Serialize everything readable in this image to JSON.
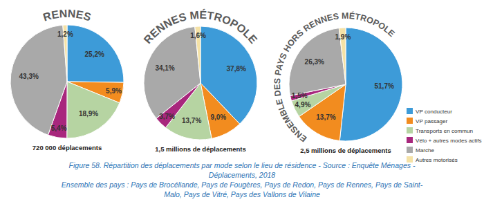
{
  "chart_data": [
    {
      "type": "pie",
      "title": "RENNES",
      "subtitle": "720 000 déplacements",
      "categories": [
        "VP conducteur",
        "VP passager",
        "Transports en commun",
        "Vélo + autres modes actifs",
        "Marche",
        "Autres motorisés"
      ],
      "values": [
        25.2,
        5.9,
        18.9,
        5.4,
        43.3,
        1.2
      ],
      "value_labels": [
        "25,2%",
        "5,9%",
        "18,9%",
        "5,4%",
        "43,3%",
        "1,2%"
      ],
      "colors": [
        "#3d9bd8",
        "#f28c1f",
        "#b6d4a2",
        "#a8277d",
        "#a9a9a9",
        "#f5e2a6"
      ],
      "data_labels": true
    },
    {
      "type": "pie",
      "title": "RENNES MÉTROPOLE",
      "subtitle": "1,5 millions de déplacements",
      "categories": [
        "VP conducteur",
        "VP passager",
        "Transports en commun",
        "Vélo + autres modes actifs",
        "Marche",
        "Autres motorisés"
      ],
      "values": [
        37.8,
        9.0,
        13.7,
        3.7,
        34.1,
        1.6
      ],
      "value_labels": [
        "37,8%",
        "9,0%",
        "13,7%",
        "3,7%",
        "34,1%",
        "1,6%"
      ],
      "colors": [
        "#3d9bd8",
        "#f28c1f",
        "#b6d4a2",
        "#a8277d",
        "#a9a9a9",
        "#f5e2a6"
      ],
      "data_labels": true
    },
    {
      "type": "pie",
      "title": "ENSEMBLE DES PAYS HORS RENNES MÉTROPOLE",
      "subtitle": "2,5 millions de déplacements",
      "categories": [
        "VP conducteur",
        "VP passager",
        "Transports en commun",
        "Vélo + autres modes actifs",
        "Marche",
        "Autres motorisés"
      ],
      "values": [
        51.7,
        13.7,
        4.9,
        1.5,
        26.3,
        1.9
      ],
      "value_labels": [
        "51,7%",
        "13,7%",
        "4,9%",
        "1,5%",
        "26,3%",
        "1,9%"
      ],
      "colors": [
        "#3d9bd8",
        "#f28c1f",
        "#b6d4a2",
        "#a8277d",
        "#a9a9a9",
        "#f5e2a6"
      ],
      "data_labels": true,
      "legend": "right"
    }
  ],
  "caption": [
    "Figure 58. Répartition des déplacements par mode selon le lieu de résidence - Source : Enquête Ménages -",
    "Déplacements, 2018",
    "Ensemble des pays : Pays de Brocéliande, Pays de Fougères, Pays de Redon, Pays de Rennes, Pays de Saint-",
    "Malo, Pays de Vitré, Pays des Vallons de Vilaine"
  ]
}
